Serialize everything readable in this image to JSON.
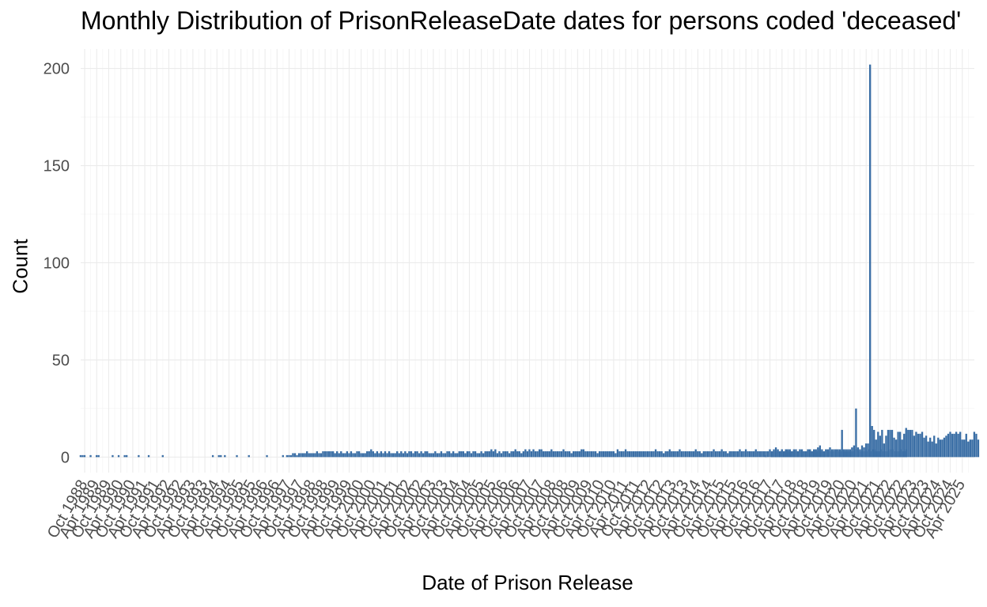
{
  "chart_data": {
    "type": "bar",
    "title": "Monthly Distribution of PrisonReleaseDate dates for persons coded 'deceased'",
    "xlabel": "Date of Prison Release",
    "ylabel": "Count",
    "ylim": [
      -8,
      210
    ],
    "y_ticks": [
      0,
      50,
      100,
      150,
      200
    ],
    "x_range": [
      "1988-08",
      "2025-10"
    ],
    "x_tick_labels": [
      "Oct 1988",
      "Apr 1989",
      "Oct 1989",
      "Apr 1990",
      "Oct 1990",
      "Apr 1991",
      "Oct 1991",
      "Apr 1992",
      "Oct 1992",
      "Apr 1993",
      "Oct 1993",
      "Apr 1994",
      "Oct 1994",
      "Apr 1995",
      "Oct 1995",
      "Apr 1996",
      "Oct 1996",
      "Apr 1997",
      "Oct 1997",
      "Apr 1998",
      "Oct 1998",
      "Apr 1999",
      "Oct 1999",
      "Apr 2000",
      "Oct 2000",
      "Apr 2001",
      "Oct 2001",
      "Apr 2002",
      "Oct 2002",
      "Apr 2003",
      "Oct 2003",
      "Apr 2004",
      "Oct 2004",
      "Apr 2005",
      "Oct 2005",
      "Apr 2006",
      "Oct 2006",
      "Apr 2007",
      "Oct 2007",
      "Apr 2008",
      "Oct 2008",
      "Apr 2009",
      "Oct 2009",
      "Apr 2010",
      "Oct 2010",
      "Apr 2011",
      "Oct 2011",
      "Apr 2012",
      "Oct 2012",
      "Apr 2013",
      "Oct 2013",
      "Apr 2014",
      "Oct 2014",
      "Apr 2015",
      "Oct 2015",
      "Apr 2016",
      "Oct 2016",
      "Apr 2017",
      "Oct 2017",
      "Apr 2018",
      "Oct 2018",
      "Apr 2019",
      "Oct 2019",
      "Apr 2020",
      "Oct 2020",
      "Apr 2021",
      "Oct 2021",
      "Apr 2022",
      "Oct 2022",
      "Apr 2023",
      "Oct 2023",
      "Apr 2024",
      "Oct 2024",
      "Apr 2025"
    ],
    "grid": true,
    "bar_color": "#3a6ea5",
    "segments": [
      {
        "start": "1988-08",
        "values": [
          1,
          1,
          1,
          0,
          0,
          1,
          0,
          0,
          1,
          1,
          0,
          0,
          0,
          0,
          0,
          0,
          1,
          0,
          0,
          1,
          0,
          0,
          1,
          1,
          0,
          0,
          0,
          0,
          0,
          1,
          0,
          0,
          0,
          0,
          1,
          0,
          0,
          0,
          0,
          0,
          0,
          1,
          0,
          0,
          0,
          0,
          0,
          0,
          0,
          0,
          0,
          0,
          0,
          0,
          0,
          0,
          0,
          0,
          0,
          0,
          0,
          0,
          0,
          0,
          0,
          0,
          1,
          0,
          0,
          1,
          1,
          0,
          1,
          0,
          0,
          0,
          0,
          0,
          1,
          0,
          0,
          0,
          0,
          0,
          1,
          0,
          0,
          0,
          0,
          0,
          0,
          0,
          0,
          1,
          0,
          0,
          0,
          0,
          0,
          0,
          0,
          1
        ]
      },
      {
        "start": "1997-03",
        "values": [
          1,
          1,
          1,
          2,
          2,
          1,
          2,
          2,
          2,
          2,
          3,
          2,
          2,
          2,
          2,
          3,
          2,
          2,
          3,
          3,
          3,
          3,
          3,
          3,
          2,
          3,
          2,
          3,
          2,
          2,
          3,
          2,
          3,
          2,
          2,
          3,
          3,
          2,
          2,
          2,
          3,
          3,
          4,
          3,
          2,
          3,
          2,
          3,
          2,
          3,
          2,
          3,
          2,
          2,
          2,
          3,
          2,
          3,
          2,
          3,
          2,
          3,
          3,
          2,
          3,
          3,
          2,
          3,
          2,
          3,
          3,
          2,
          2,
          2,
          3,
          2,
          2,
          3,
          2,
          2,
          3,
          3,
          2,
          3,
          2,
          2,
          3,
          3,
          3,
          2,
          3,
          3,
          2,
          3,
          3,
          2,
          2,
          3,
          2,
          3,
          3,
          3,
          4,
          3,
          4,
          2,
          3,
          2,
          3,
          3,
          3,
          2,
          3,
          3,
          4,
          3,
          3,
          2,
          3,
          4,
          3,
          4,
          3,
          4,
          3,
          3,
          4,
          4,
          3,
          3,
          3,
          3,
          4,
          3,
          3,
          3,
          3,
          3,
          4,
          3,
          3,
          3,
          2,
          3,
          3,
          3,
          3,
          4,
          4,
          3,
          3,
          3,
          3,
          3,
          3,
          2,
          3,
          3,
          3,
          3,
          3,
          3,
          3,
          3,
          2,
          4,
          3,
          3,
          3,
          4,
          3,
          3,
          3,
          3,
          3,
          3,
          3,
          3,
          3,
          3,
          3,
          3,
          3,
          3,
          4,
          3,
          3,
          3,
          2,
          3,
          3,
          4,
          3,
          3,
          3,
          3,
          4,
          3,
          3,
          3,
          3,
          3,
          3,
          3,
          4,
          3,
          3,
          2,
          3,
          3,
          3,
          3,
          3,
          4,
          3,
          3,
          3,
          4,
          3,
          3,
          2,
          3,
          3,
          3,
          3,
          3,
          4,
          3,
          3,
          4,
          3,
          3,
          3,
          3,
          4,
          3,
          3,
          3,
          3,
          3,
          3,
          4,
          3,
          4,
          3,
          3,
          3,
          4,
          3,
          4,
          3,
          3,
          3,
          3,
          3,
          3,
          4,
          3,
          3,
          3,
          4,
          4,
          3,
          4,
          3,
          3,
          4,
          3,
          3,
          4,
          4,
          3,
          3,
          3,
          4,
          3,
          3,
          4,
          3,
          3,
          4,
          3,
          3,
          3,
          25,
          4,
          3,
          3,
          3,
          3,
          4,
          3,
          4,
          4,
          3,
          3,
          3,
          4,
          3,
          3,
          3,
          4,
          4,
          3,
          3,
          3,
          4,
          3,
          3,
          4
        ]
      },
      {
        "start": "2016-11",
        "values": [
          0,
          0,
          0,
          1,
          0,
          0,
          3,
          3,
          5,
          4,
          3,
          4,
          3,
          4,
          4,
          4,
          3,
          4,
          4,
          3,
          4,
          4,
          3,
          3,
          4,
          4,
          3,
          4,
          4,
          5,
          6,
          4,
          3,
          4,
          4,
          5,
          4,
          4,
          4,
          4,
          4,
          14,
          4,
          4,
          3,
          4,
          5,
          6,
          4,
          5,
          4,
          6,
          5,
          7,
          7,
          202,
          16,
          14,
          9,
          13,
          11,
          14,
          7,
          11,
          14,
          14,
          14,
          10,
          9,
          13,
          13,
          9,
          12,
          15,
          14,
          14,
          14,
          11,
          13,
          12,
          12,
          13,
          10,
          11,
          8,
          10,
          8,
          11,
          7,
          10,
          9,
          9,
          10,
          11,
          12,
          13,
          12,
          12,
          13,
          12,
          13,
          9,
          9,
          12,
          8,
          9,
          9,
          13,
          12,
          9
        ]
      }
    ]
  }
}
